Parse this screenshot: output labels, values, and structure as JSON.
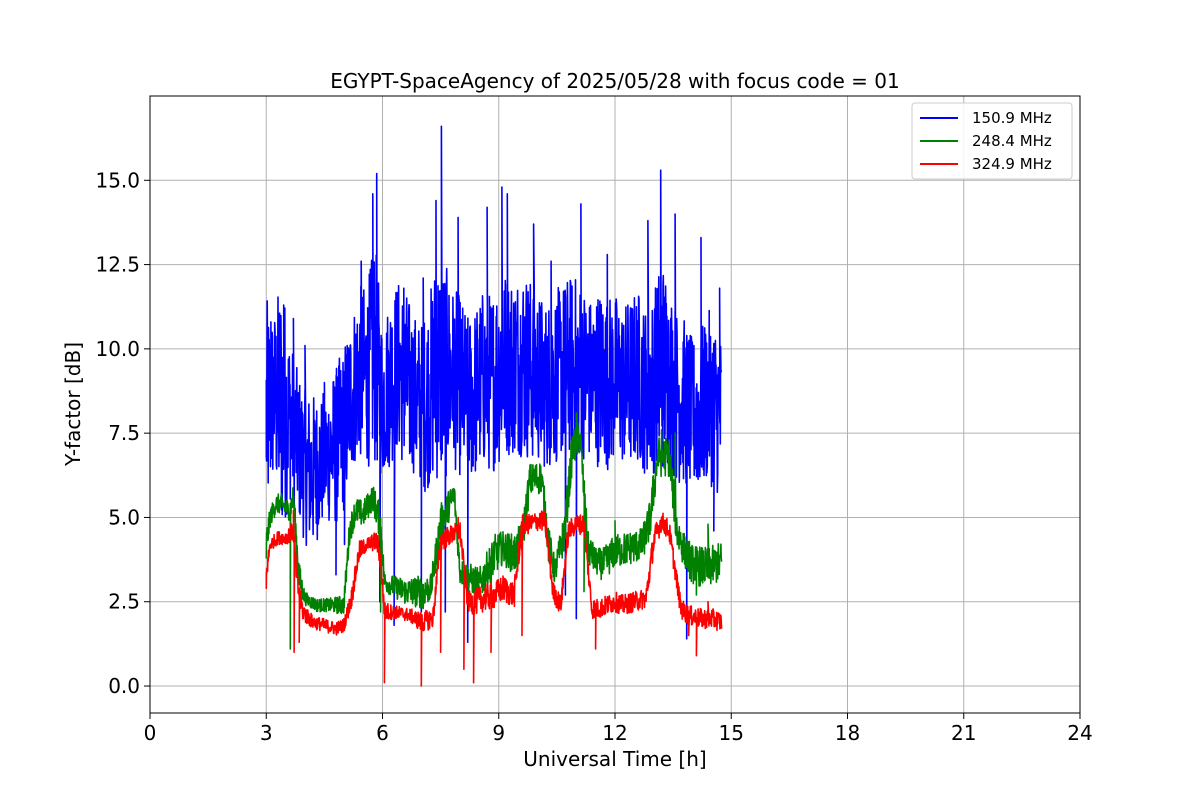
{
  "chart_data": {
    "type": "line",
    "title": "EGYPT-SpaceAgency of 2025/05/28 with focus code = 01",
    "xlabel": "Universal Time [h]",
    "ylabel": "Y-factor [dB]",
    "xlim": [
      0,
      24
    ],
    "ylim": [
      -0.8,
      17.5
    ],
    "xticks": [
      0,
      3,
      6,
      9,
      12,
      15,
      18,
      21,
      24
    ],
    "xtick_labels": [
      "0",
      "3",
      "6",
      "9",
      "12",
      "15",
      "18",
      "21",
      "24"
    ],
    "yticks": [
      0,
      2.5,
      5,
      7.5,
      10,
      12.5,
      15
    ],
    "ytick_labels": [
      "0.0",
      "2.5",
      "5.0",
      "7.5",
      "10.0",
      "12.5",
      "15.0"
    ],
    "grid": true,
    "legend_position": "top-right",
    "series": [
      {
        "name": "150.9 MHz",
        "color": "#0000ff",
        "x": [
          3.0,
          3.2,
          3.4,
          3.6,
          3.8,
          4.0,
          4.2,
          4.4,
          4.6,
          4.8,
          5.0,
          5.2,
          5.4,
          5.6,
          5.8,
          6.0,
          6.2,
          6.4,
          6.6,
          6.8,
          7.0,
          7.2,
          7.4,
          7.6,
          7.8,
          8.0,
          8.2,
          8.4,
          8.6,
          8.8,
          9.0,
          9.2,
          9.4,
          9.6,
          9.8,
          10.0,
          10.2,
          10.4,
          10.6,
          10.8,
          11.0,
          11.2,
          11.4,
          11.6,
          11.8,
          12.0,
          12.2,
          12.4,
          12.6,
          12.8,
          13.0,
          13.2,
          13.4,
          13.6,
          13.8,
          14.0,
          14.2,
          14.4,
          14.6,
          14.75
        ],
        "y": [
          8.0,
          8.6,
          8.3,
          8.0,
          7.2,
          6.5,
          6.3,
          6.6,
          6.9,
          7.1,
          7.6,
          8.7,
          9.3,
          9.2,
          9.9,
          8.4,
          9.1,
          9.5,
          9.0,
          8.7,
          8.2,
          8.7,
          9.5,
          9.3,
          9.2,
          8.9,
          8.5,
          8.7,
          9.1,
          9.0,
          9.4,
          9.6,
          9.5,
          9.7,
          9.4,
          9.2,
          8.9,
          9.1,
          9.3,
          9.5,
          9.4,
          9.3,
          9.0,
          9.2,
          9.0,
          9.1,
          8.9,
          9.0,
          9.2,
          8.7,
          9.0,
          9.6,
          9.2,
          8.6,
          8.4,
          8.0,
          8.1,
          8.6,
          8.3,
          7.9
        ],
        "envelope": [
          3.5,
          2.5,
          4.0,
          2.5,
          2.2,
          2.3,
          2.4,
          2.0,
          2.1,
          2.4,
          2.5,
          2.4,
          2.6,
          2.7,
          3.4,
          2.3,
          2.6,
          2.6,
          2.8,
          2.4,
          2.6,
          2.8,
          3.5,
          3.3,
          2.7,
          2.7,
          2.5,
          2.6,
          2.7,
          2.7,
          2.9,
          2.8,
          2.7,
          2.9,
          2.8,
          2.6,
          2.5,
          2.6,
          2.6,
          2.7,
          2.8,
          2.6,
          2.5,
          2.7,
          2.6,
          2.6,
          2.4,
          2.6,
          2.6,
          2.5,
          2.7,
          3.3,
          2.8,
          2.6,
          2.5,
          2.3,
          2.4,
          2.6,
          2.5,
          2.6
        ],
        "spikes": [
          [
            3.0,
            6.8
          ],
          [
            3.05,
            9.6
          ],
          [
            3.12,
            10.8
          ],
          [
            3.45,
            11.3
          ],
          [
            3.7,
            10.9
          ],
          [
            4.0,
            10.1
          ],
          [
            4.5,
            9.0
          ],
          [
            4.8,
            3.3
          ],
          [
            5.02,
            4.2
          ],
          [
            5.05,
            9.6
          ],
          [
            5.45,
            12.6
          ],
          [
            5.75,
            14.6
          ],
          [
            5.85,
            15.2
          ],
          [
            5.93,
            2.5
          ],
          [
            6.3,
            1.8
          ],
          [
            6.55,
            11.8
          ],
          [
            7.0,
            2.2
          ],
          [
            7.05,
            12.1
          ],
          [
            7.38,
            14.4
          ],
          [
            7.52,
            16.6
          ],
          [
            7.62,
            2.2
          ],
          [
            7.95,
            13.9
          ],
          [
            8.2,
            1.3
          ],
          [
            8.7,
            14.2
          ],
          [
            9.08,
            14.8
          ],
          [
            9.22,
            14.6
          ],
          [
            9.9,
            13.7
          ],
          [
            10.35,
            12.6
          ],
          [
            10.72,
            2.7
          ],
          [
            11.0,
            2.0
          ],
          [
            11.12,
            14.3
          ],
          [
            11.8,
            12.8
          ],
          [
            12.85,
            13.8
          ],
          [
            13.18,
            15.3
          ],
          [
            13.55,
            14.0
          ],
          [
            13.85,
            1.4
          ],
          [
            14.22,
            13.3
          ],
          [
            14.55,
            4.6
          ],
          [
            14.7,
            11.8
          ]
        ]
      },
      {
        "name": "248.4 MHz",
        "color": "#008000",
        "x": [
          3.0,
          3.1,
          3.25,
          3.4,
          3.6,
          3.7,
          3.85,
          4.0,
          4.3,
          4.6,
          5.0,
          5.15,
          5.3,
          5.5,
          5.75,
          5.95,
          6.05,
          6.2,
          6.6,
          7.0,
          7.25,
          7.5,
          7.85,
          8.0,
          8.15,
          8.5,
          8.9,
          9.1,
          9.4,
          9.6,
          9.8,
          10.1,
          10.3,
          10.45,
          10.7,
          10.9,
          11.1,
          11.3,
          11.5,
          11.7,
          12.0,
          12.4,
          12.7,
          12.9,
          13.1,
          13.4,
          13.6,
          13.8,
          14.0,
          14.4,
          14.75
        ],
        "y": [
          4.2,
          5.0,
          5.4,
          5.4,
          5.2,
          5.6,
          3.2,
          2.6,
          2.4,
          2.4,
          2.4,
          4.6,
          5.2,
          5.1,
          5.6,
          4.8,
          3.1,
          3.0,
          2.8,
          2.8,
          2.9,
          4.8,
          5.7,
          3.4,
          3.3,
          3.0,
          3.9,
          4.1,
          3.9,
          4.3,
          6.1,
          6.2,
          4.1,
          3.4,
          4.6,
          7.0,
          7.4,
          4.1,
          3.7,
          3.6,
          4.0,
          4.1,
          4.2,
          4.9,
          6.8,
          6.8,
          4.6,
          4.0,
          3.6,
          3.5,
          3.7
        ],
        "envelope": [
          0.5,
          0.3,
          0.3,
          0.3,
          0.3,
          0.4,
          0.5,
          0.2,
          0.2,
          0.2,
          0.3,
          0.4,
          0.4,
          0.4,
          0.4,
          0.6,
          0.3,
          0.3,
          0.4,
          0.5,
          0.4,
          0.6,
          0.4,
          0.4,
          0.4,
          0.5,
          0.6,
          0.5,
          0.6,
          0.6,
          0.5,
          0.5,
          0.6,
          0.4,
          0.6,
          0.6,
          0.5,
          0.5,
          0.4,
          0.5,
          0.5,
          0.5,
          0.5,
          0.6,
          0.6,
          0.6,
          0.6,
          0.5,
          0.6,
          0.6,
          0.6
        ],
        "spikes": [
          [
            3.0,
            3.8
          ],
          [
            3.62,
            1.1
          ],
          [
            3.78,
            3.4
          ],
          [
            5.95,
            2.2
          ],
          [
            7.05,
            2.3
          ],
          [
            8.8,
            2.7
          ],
          [
            11.0,
            8.1
          ],
          [
            11.2,
            2.8
          ],
          [
            12.0,
            4.9
          ],
          [
            13.2,
            7.6
          ],
          [
            13.55,
            7.5
          ],
          [
            14.1,
            2.7
          ],
          [
            14.4,
            4.8
          ]
        ]
      },
      {
        "name": "324.9 MHz",
        "color": "#ff0000",
        "x": [
          3.0,
          3.1,
          3.3,
          3.5,
          3.7,
          3.8,
          3.95,
          4.2,
          4.5,
          4.8,
          5.0,
          5.2,
          5.4,
          5.6,
          5.85,
          5.95,
          6.05,
          6.3,
          6.7,
          7.0,
          7.3,
          7.5,
          7.8,
          8.0,
          8.2,
          8.4,
          8.6,
          8.9,
          9.1,
          9.4,
          9.6,
          9.8,
          10.0,
          10.2,
          10.4,
          10.6,
          10.8,
          11.0,
          11.2,
          11.4,
          11.6,
          11.8,
          12.0,
          12.2,
          12.5,
          12.8,
          13.0,
          13.2,
          13.4,
          13.7,
          13.9,
          14.2,
          14.5,
          14.75
        ],
        "y": [
          3.3,
          4.2,
          4.4,
          4.4,
          4.6,
          3.0,
          2.2,
          1.9,
          1.8,
          1.7,
          1.8,
          2.6,
          4.0,
          4.2,
          4.3,
          3.8,
          2.2,
          2.2,
          2.1,
          1.9,
          2.0,
          4.3,
          4.5,
          4.6,
          2.5,
          2.5,
          2.6,
          2.7,
          2.9,
          2.7,
          4.8,
          4.8,
          4.9,
          4.9,
          2.8,
          2.4,
          4.6,
          4.8,
          4.8,
          2.3,
          2.3,
          2.4,
          2.5,
          2.4,
          2.5,
          2.6,
          4.3,
          4.9,
          4.6,
          2.3,
          2.1,
          2.0,
          2.0,
          1.9
        ],
        "envelope": [
          0.3,
          0.2,
          0.2,
          0.2,
          0.3,
          0.4,
          0.3,
          0.2,
          0.2,
          0.2,
          0.2,
          0.3,
          0.3,
          0.2,
          0.3,
          0.4,
          0.3,
          0.2,
          0.2,
          0.3,
          0.3,
          0.3,
          0.3,
          0.3,
          0.3,
          0.4,
          0.4,
          0.4,
          0.4,
          0.4,
          0.3,
          0.3,
          0.3,
          0.3,
          0.3,
          0.3,
          0.3,
          0.3,
          0.3,
          0.3,
          0.3,
          0.3,
          0.3,
          0.3,
          0.3,
          0.3,
          0.4,
          0.3,
          0.3,
          0.3,
          0.3,
          0.3,
          0.3,
          0.3
        ],
        "spikes": [
          [
            3.0,
            2.9
          ],
          [
            3.7,
            5.2
          ],
          [
            3.72,
            1.0
          ],
          [
            3.85,
            1.3
          ],
          [
            6.05,
            0.1
          ],
          [
            7.0,
            0.0
          ],
          [
            7.5,
            1.0
          ],
          [
            7.95,
            5.0
          ],
          [
            8.1,
            0.5
          ],
          [
            8.35,
            0.1
          ],
          [
            8.8,
            1.0
          ],
          [
            9.6,
            1.5
          ],
          [
            11.5,
            1.1
          ],
          [
            13.9,
            1.5
          ],
          [
            14.1,
            0.9
          ],
          [
            14.4,
            2.5
          ]
        ]
      }
    ]
  }
}
